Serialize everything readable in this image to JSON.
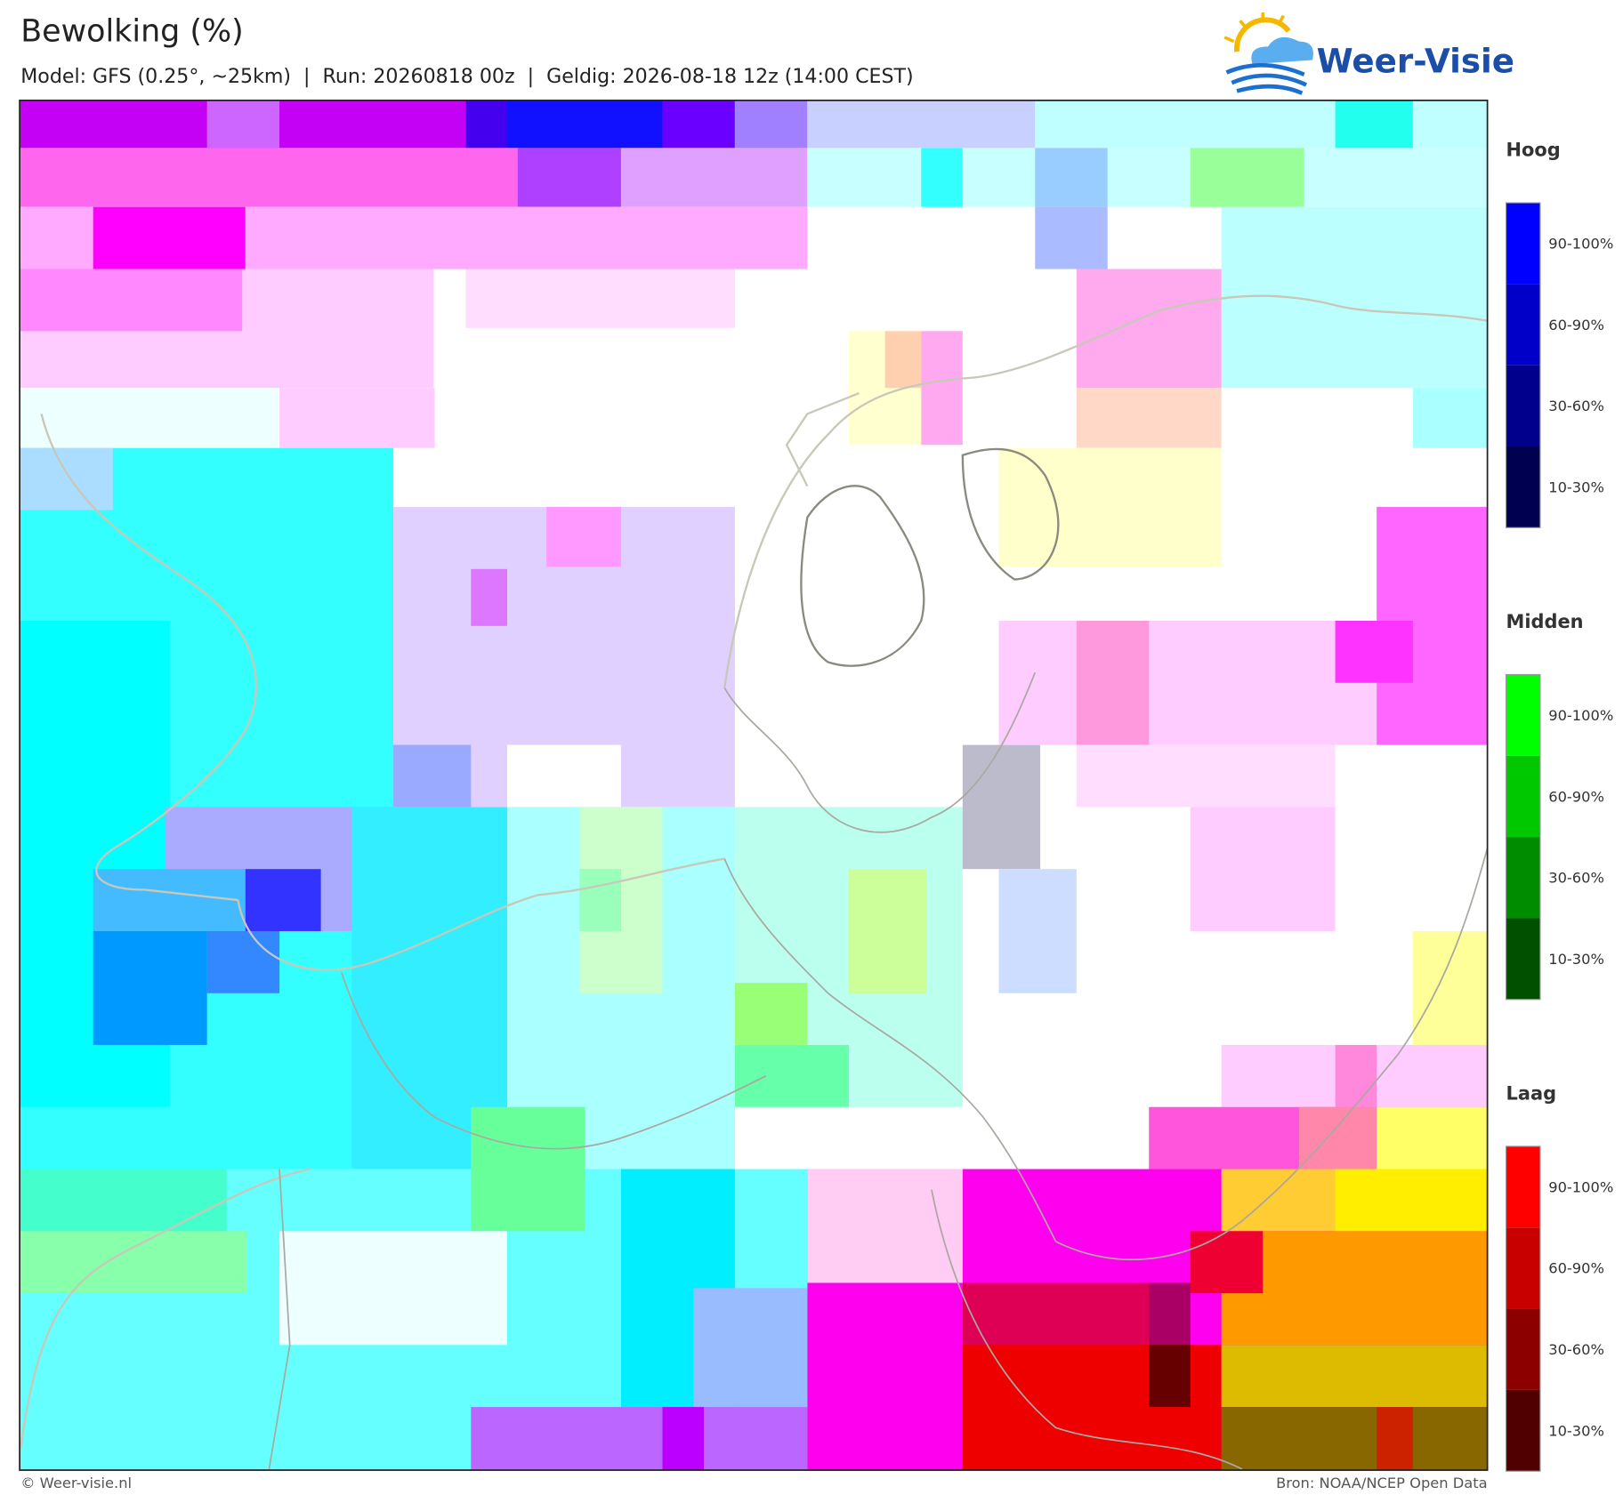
{
  "header": {
    "title": "Bewolking (%)",
    "subtitle": "Model: GFS (0.25°, ~25km)  |  Run: 20260818 00z  |  Geldig: 2026-08-18 12z (14:00 CEST)"
  },
  "logo": {
    "text": "Weer-Visie"
  },
  "legend": [
    {
      "heading": "Hoog",
      "items": [
        {
          "label": "90-100%",
          "color": "#0000ff"
        },
        {
          "label": "60-90%",
          "color": "#0000c8"
        },
        {
          "label": "30-60%",
          "color": "#00008c"
        },
        {
          "label": "10-30%",
          "color": "#000050"
        }
      ]
    },
    {
      "heading": "Midden",
      "items": [
        {
          "label": "90-100%",
          "color": "#00ff00"
        },
        {
          "label": "60-90%",
          "color": "#00c800"
        },
        {
          "label": "30-60%",
          "color": "#008c00"
        },
        {
          "label": "10-30%",
          "color": "#005000"
        }
      ]
    },
    {
      "heading": "Laag",
      "items": [
        {
          "label": "90-100%",
          "color": "#ff0000"
        },
        {
          "label": "60-90%",
          "color": "#c80000"
        },
        {
          "label": "30-60%",
          "color": "#8c0000"
        },
        {
          "label": "10-30%",
          "color": "#500000"
        }
      ]
    }
  ],
  "footer": {
    "left": "© Weer-visie.nl",
    "right": "Bron: NOAA/NCEP Open Data"
  }
}
